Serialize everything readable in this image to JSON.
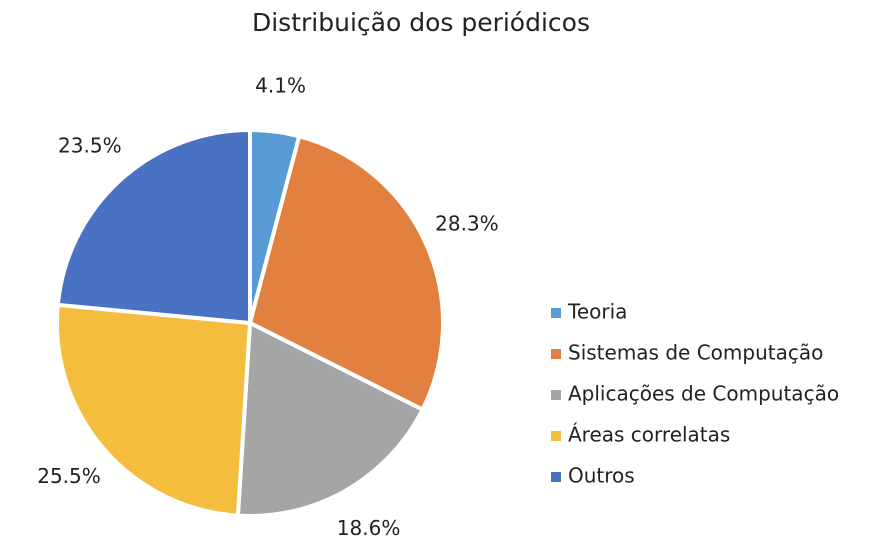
{
  "chart_data": {
    "type": "pie",
    "title": "Distribuição dos periódicos",
    "categories": [
      "Teoria",
      "Sistemas de Computação",
      "Aplicações de Computação",
      "Áreas correlatas",
      "Outros"
    ],
    "values": [
      4.1,
      28.3,
      18.6,
      25.5,
      23.5
    ],
    "value_labels": [
      "4.1%",
      "28.3%",
      "18.6%",
      "25.5%",
      "23.5%"
    ],
    "colors": [
      "#5b9bd5",
      "#e2803f",
      "#a5a5a5",
      "#f4bd3e",
      "#4a72c2"
    ],
    "legend": "right"
  }
}
